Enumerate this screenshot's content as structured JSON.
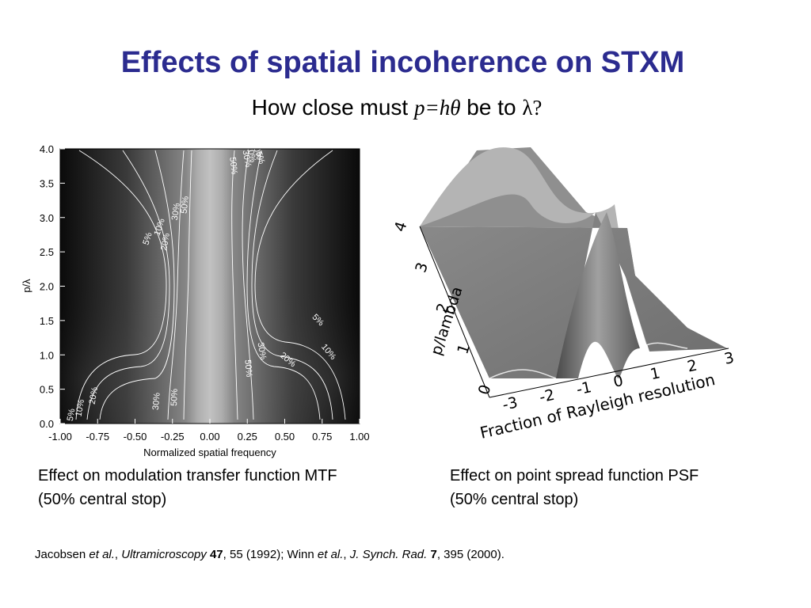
{
  "slide": {
    "title": "Effects of spatial incoherence on STXM",
    "subtitle_prefix": "How close must ",
    "subtitle_math": "p=hθ",
    "subtitle_mid": " be to ",
    "subtitle_lambda": "λ",
    "subtitle_q": "?"
  },
  "captions": {
    "left_line1": "Effect on modulation transfer function MTF",
    "left_line2": "(50% central stop)",
    "right_line1": "Effect on point spread function PSF",
    "right_line2": "(50% central stop)"
  },
  "reference": {
    "a1": "Jacobsen ",
    "a2": "et al.",
    "a3": ", ",
    "j1": "Ultramicroscopy",
    "a4": " ",
    "v1": "47",
    "a5": ", 55 (1992); Winn ",
    "a6": "et al.",
    "a7": ", ",
    "j2": "J. Synch. Rad.",
    "a8": " ",
    "v2": "7",
    "a9": ", 395 (2000)."
  },
  "chart_data": [
    {
      "type": "heatmap",
      "subtype": "contour",
      "xlabel": "Normalized spatial frequency",
      "ylabel": "p/λ",
      "xlim": [
        -1.0,
        1.0
      ],
      "ylim": [
        0.0,
        4.0
      ],
      "xticks": [
        "-1.00",
        "-0.75",
        "-0.50",
        "-0.25",
        "0.00",
        "0.25",
        "0.50",
        "0.75",
        "1.00"
      ],
      "yticks": [
        "0.0",
        "0.5",
        "1.0",
        "1.5",
        "2.0",
        "2.5",
        "3.0",
        "3.5",
        "4.0"
      ],
      "contour_labels": [
        "5%",
        "10%",
        "20%",
        "30%",
        "50%"
      ],
      "contour_label_instances": [
        {
          "text": "5%",
          "x": -0.91,
          "y": 0.12,
          "rot": -80
        },
        {
          "text": "10%",
          "x": -0.85,
          "y": 0.22,
          "rot": -80
        },
        {
          "text": "20%",
          "x": -0.76,
          "y": 0.4,
          "rot": -80
        },
        {
          "text": "30%",
          "x": -0.34,
          "y": 0.32,
          "rot": -85
        },
        {
          "text": "50%",
          "x": -0.22,
          "y": 0.38,
          "rot": -88
        },
        {
          "text": "5%",
          "x": -0.4,
          "y": 2.68,
          "rot": -72
        },
        {
          "text": "10%",
          "x": -0.32,
          "y": 2.85,
          "rot": -72
        },
        {
          "text": "20%",
          "x": -0.28,
          "y": 2.64,
          "rot": -80
        },
        {
          "text": "30%",
          "x": -0.21,
          "y": 3.08,
          "rot": -82
        },
        {
          "text": "50%",
          "x": -0.15,
          "y": 3.18,
          "rot": -84
        },
        {
          "text": "50%",
          "x": 0.14,
          "y": 3.75,
          "rot": 84
        },
        {
          "text": "30%",
          "x": 0.23,
          "y": 3.85,
          "rot": 80
        },
        {
          "text": "20%",
          "x": 0.26,
          "y": 3.92,
          "rot": 78
        },
        {
          "text": "10%",
          "x": 0.3,
          "y": 3.96,
          "rot": 75
        },
        {
          "text": "5%",
          "x": 0.32,
          "y": 3.86,
          "rot": 72
        },
        {
          "text": "5%",
          "x": 0.71,
          "y": 1.48,
          "rot": 45
        },
        {
          "text": "10%",
          "x": 0.78,
          "y": 1.02,
          "rot": 50
        },
        {
          "text": "20%",
          "x": 0.51,
          "y": 0.9,
          "rot": 40
        },
        {
          "text": "30%",
          "x": 0.33,
          "y": 1.05,
          "rot": 80
        },
        {
          "text": "50%",
          "x": 0.24,
          "y": 0.8,
          "rot": 85
        }
      ]
    },
    {
      "type": "surface",
      "xlabel": "Fraction of Rayleigh resolution",
      "ylabel": "p/lambda",
      "xticks": [
        "-3",
        "-2",
        "-1",
        "0",
        "1",
        "2",
        "3"
      ],
      "yticks": [
        "0",
        "1",
        "2",
        "3",
        "4"
      ]
    }
  ]
}
